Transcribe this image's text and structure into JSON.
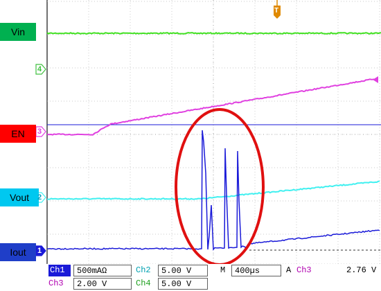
{
  "window": {
    "title": ""
  },
  "channels": {
    "vin": {
      "label": "Vin",
      "marker": "",
      "label_bg": "#00b050",
      "trace_color": "#40e020"
    },
    "en": {
      "label": "EN",
      "marker": "3",
      "label_bg": "#ff0000",
      "trace_color": "#e040e0"
    },
    "vout": {
      "label": "Vout",
      "marker": "2",
      "label_bg": "#00c8f0",
      "trace_color": "#40f0f0"
    },
    "iout": {
      "label": "Iout",
      "marker": "1",
      "label_bg": "#1f3ec8",
      "trace_color": "#1a1ad8"
    },
    "ch4": {
      "marker": "4",
      "color": "#40c040"
    }
  },
  "trigger": {
    "marker": "T",
    "color": "#e08a00"
  },
  "annotation": {
    "ring_color": "#e01010"
  },
  "status_bar": {
    "ch1_name": "Ch1",
    "ch1_value": "500mAΩ",
    "ch2_name": "Ch2",
    "ch2_value": "5.00 V",
    "ch3_name": "Ch3",
    "ch3_value": "2.00 V",
    "ch4_name": "Ch4",
    "ch4_value": "5.00 V",
    "timebase_prefix": "M",
    "timebase": "400µs",
    "trigger_mode": "A",
    "trigger_channel": "Ch3",
    "trigger_edge_icon": "rising-edge-icon",
    "trigger_level": "2.76 V"
  }
}
